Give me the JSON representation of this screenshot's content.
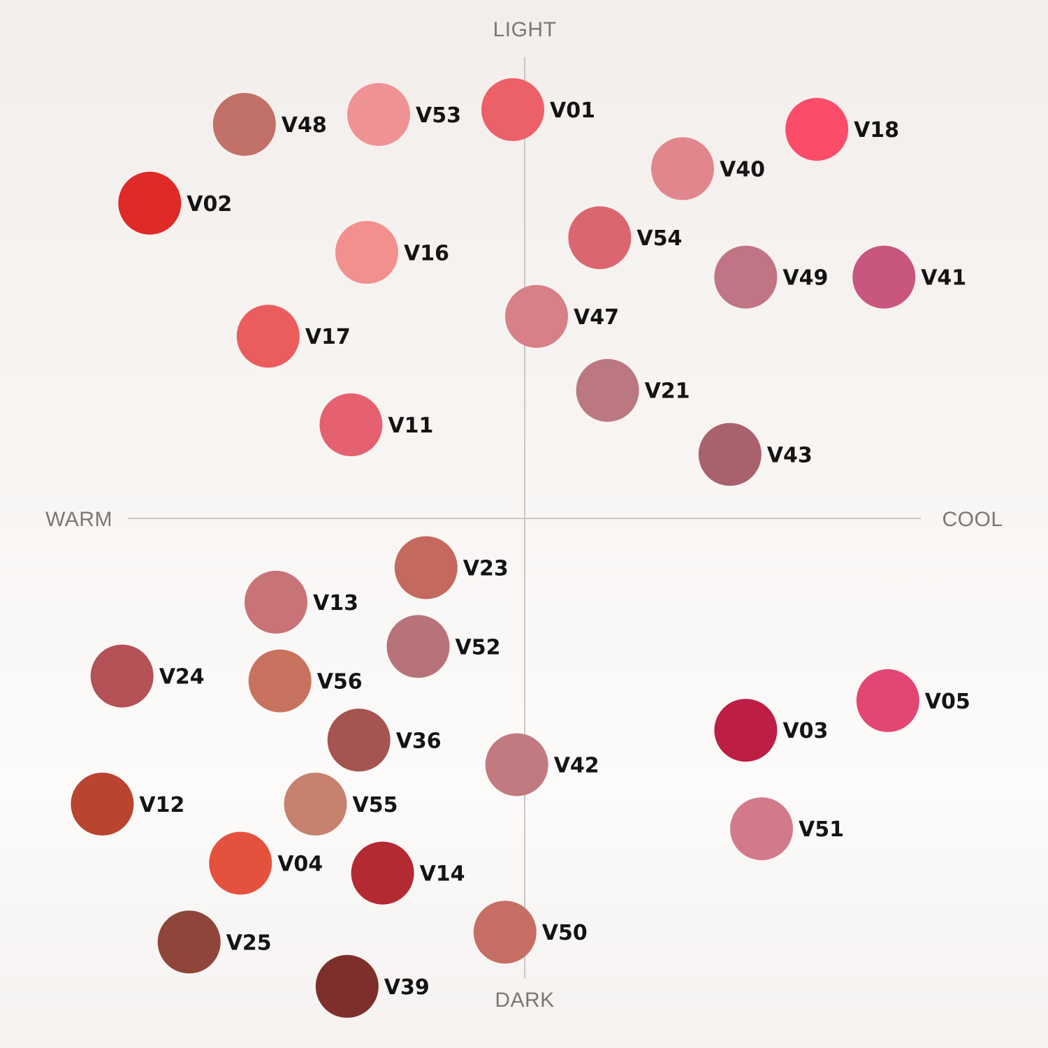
{
  "chart_data": {
    "type": "scatter",
    "title": "",
    "axis_labels": {
      "top": "LIGHT",
      "bottom": "DARK",
      "left": "WARM",
      "right": "COOL"
    },
    "x_range": [
      -100,
      100
    ],
    "y_range": [
      -100,
      100
    ],
    "x_meaning": "warm (negative) to cool (positive)",
    "y_meaning": "dark (negative) to light (positive)",
    "grid": false,
    "points": [
      {
        "label": "V53",
        "x": -37,
        "y": 82,
        "color": "#ef9294"
      },
      {
        "label": "V01",
        "x": -3,
        "y": 83,
        "color": "#ec6068"
      },
      {
        "label": "V48",
        "x": -71,
        "y": 80,
        "color": "#c17168"
      },
      {
        "label": "V18",
        "x": 74,
        "y": 79,
        "color": "#fb4c6a"
      },
      {
        "label": "V40",
        "x": 40,
        "y": 71,
        "color": "#e2868e"
      },
      {
        "label": "V02",
        "x": -95,
        "y": 64,
        "color": "#e02a28"
      },
      {
        "label": "V54",
        "x": 19,
        "y": 57,
        "color": "#db6670"
      },
      {
        "label": "V16",
        "x": -40,
        "y": 54,
        "color": "#f2908e"
      },
      {
        "label": "V49",
        "x": 56,
        "y": 49,
        "color": "#c17483"
      },
      {
        "label": "V41",
        "x": 91,
        "y": 49,
        "color": "#c8567e"
      },
      {
        "label": "V47",
        "x": 3,
        "y": 41,
        "color": "#d78087"
      },
      {
        "label": "V17",
        "x": -65,
        "y": 37,
        "color": "#eb5c5d"
      },
      {
        "label": "V21",
        "x": 21,
        "y": 26,
        "color": "#bb7880"
      },
      {
        "label": "V11",
        "x": -44,
        "y": 19,
        "color": "#e5616f"
      },
      {
        "label": "V43",
        "x": 52,
        "y": 13,
        "color": "#a9616e"
      },
      {
        "label": "V23",
        "x": -25,
        "y": -10,
        "color": "#c5685e"
      },
      {
        "label": "V13",
        "x": -63,
        "y": -17,
        "color": "#c87378"
      },
      {
        "label": "V52",
        "x": -27,
        "y": -26,
        "color": "#b77379"
      },
      {
        "label": "V24",
        "x": -102,
        "y": -32,
        "color": "#b45258"
      },
      {
        "label": "V56",
        "x": -62,
        "y": -33,
        "color": "#c7725f"
      },
      {
        "label": "V05",
        "x": 92,
        "y": -37,
        "color": "#e44674"
      },
      {
        "label": "V03",
        "x": 56,
        "y": -43,
        "color": "#bc1e44"
      },
      {
        "label": "V36",
        "x": -42,
        "y": -45,
        "color": "#a55452"
      },
      {
        "label": "V42",
        "x": -2,
        "y": -50,
        "color": "#c17a80"
      },
      {
        "label": "V12",
        "x": -107,
        "y": -58,
        "color": "#b9442f"
      },
      {
        "label": "V55",
        "x": -53,
        "y": -58,
        "color": "#c6826e"
      },
      {
        "label": "V51",
        "x": 60,
        "y": -63,
        "color": "#d37a8a"
      },
      {
        "label": "V04",
        "x": -72,
        "y": -70,
        "color": "#e4523e"
      },
      {
        "label": "V14",
        "x": -36,
        "y": -72,
        "color": "#b32a33"
      },
      {
        "label": "V50",
        "x": -5,
        "y": -84,
        "color": "#c66e64"
      },
      {
        "label": "V25",
        "x": -85,
        "y": -86,
        "color": "#8f4539"
      },
      {
        "label": "V39",
        "x": -45,
        "y": -95,
        "color": "#7e2f2c"
      }
    ]
  }
}
